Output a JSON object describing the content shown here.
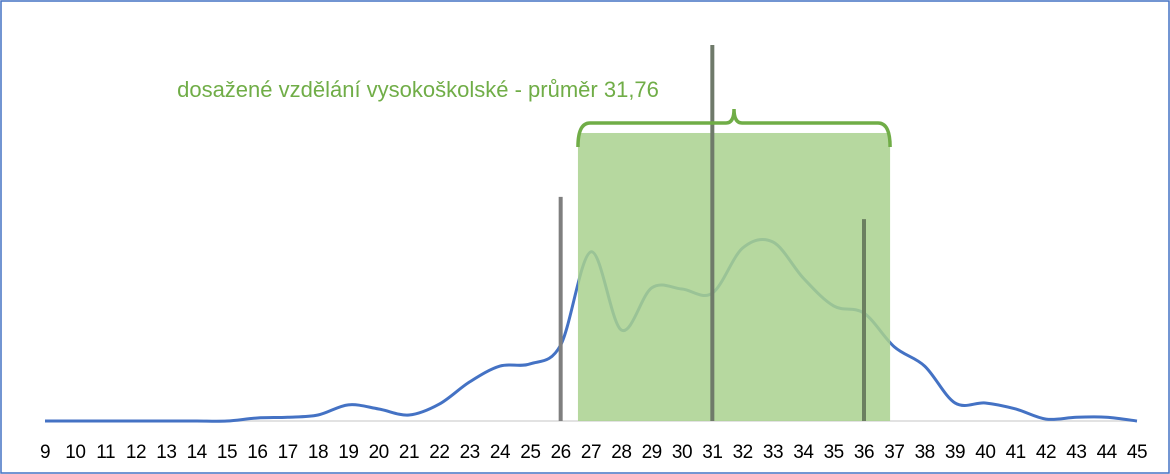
{
  "chart_data": {
    "type": "line",
    "annotation": "dosažené vzdělání vysokoškolské - průměr 31,76",
    "x": [
      9,
      10,
      11,
      12,
      13,
      14,
      15,
      16,
      17,
      18,
      19,
      20,
      21,
      22,
      23,
      24,
      25,
      26,
      27,
      28,
      29,
      30,
      31,
      32,
      33,
      34,
      35,
      36,
      37,
      38,
      39,
      40,
      41,
      42,
      43,
      44,
      45
    ],
    "xlim": [
      9,
      45
    ],
    "ylim": [
      0,
      100
    ],
    "series": [
      {
        "color": "#4472c4",
        "values": [
          0,
          0,
          0,
          0,
          0,
          0,
          0,
          0.8,
          1,
          1.6,
          4.3,
          3.2,
          1.6,
          4.5,
          10.4,
          14.6,
          15.2,
          20.2,
          45,
          24.2,
          35.4,
          35.1,
          34,
          46,
          47.6,
          38,
          30.6,
          28.7,
          19.7,
          14.6,
          4.8,
          4.8,
          3.2,
          0.5,
          1,
          1,
          0
        ]
      }
    ],
    "band": {
      "x": [
        26.57,
        36.86
      ],
      "height": 76.6,
      "color": "#a9d18e"
    },
    "vlines": [
      {
        "x": 26,
        "height": 59.6,
        "color": "#7f7f7f"
      },
      {
        "x": 31,
        "height": 100,
        "color": "#6f7a6a"
      },
      {
        "x": 36,
        "height": 53.7,
        "color": "#6b7f60"
      }
    ],
    "bracket_color": "#70ad47"
  }
}
